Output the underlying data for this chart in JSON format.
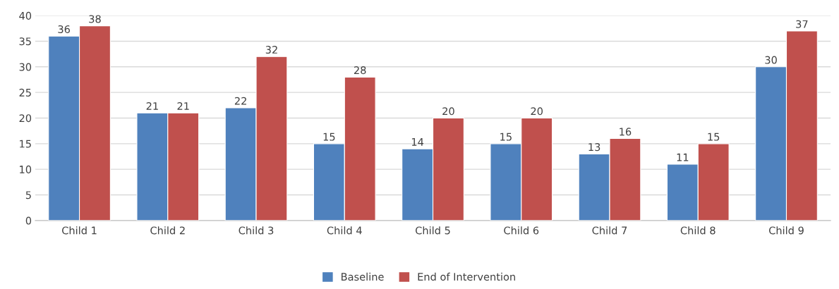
{
  "chart_data": {
    "type": "bar",
    "categories": [
      "Child 1",
      "Child 2",
      "Child 3",
      "Child 4",
      "Child 5",
      "Child 6",
      "Child 7",
      "Child 8",
      "Child 9"
    ],
    "series": [
      {
        "name": "Baseline",
        "color": "#4f81bd",
        "values": [
          36,
          21,
          22,
          15,
          14,
          15,
          13,
          11,
          30
        ]
      },
      {
        "name": "End of Intervention",
        "color": "#c0504d",
        "values": [
          38,
          21,
          32,
          28,
          20,
          20,
          16,
          15,
          37
        ]
      }
    ],
    "ylim": [
      0,
      40
    ],
    "yticks": [
      0,
      5,
      10,
      15,
      20,
      25,
      30,
      35,
      40
    ],
    "grid": "y",
    "legend": "bottom",
    "data_labels": true
  }
}
